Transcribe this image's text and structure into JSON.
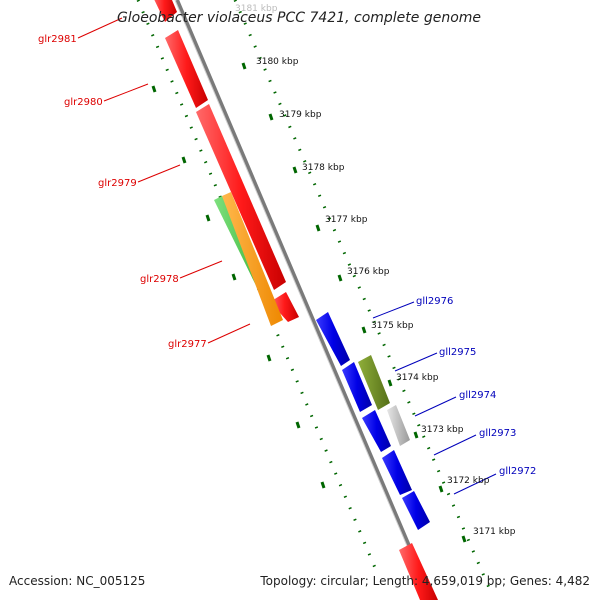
{
  "title": "Gloeobacter violaceus PCC 7421, complete genome",
  "footer": {
    "accession": "Accession: NC_005125",
    "topology": "Topology: circular; Length: 4,659,019 bp; Genes: 4,482"
  },
  "ruler": [
    "3181 kbp",
    "3180 kbp",
    "3179 kbp",
    "3178 kbp",
    "3177 kbp",
    "3176 kbp",
    "3175 kbp",
    "3174 kbp",
    "3173 kbp",
    "3172 kbp",
    "3171 kbp"
  ],
  "genes_reverse": [
    "glr2981",
    "glr2980",
    "glr2979",
    "glr2978",
    "glr2977"
  ],
  "genes_forward": [
    "gll2976",
    "gll2975",
    "gll2974",
    "gll2973",
    "gll2972"
  ],
  "colors": {
    "reverse_strand": "#ff1a1a",
    "forward_strand": "#0000e6",
    "reverse_label": "#dd0000",
    "forward_label": "#0000bb",
    "feature_green": "#44cc44",
    "feature_orange": "#ff9900",
    "feature_olive": "#6b8e23",
    "feature_grey": "#aaaaaa",
    "backbone": "#888888",
    "dots": "#006600"
  }
}
